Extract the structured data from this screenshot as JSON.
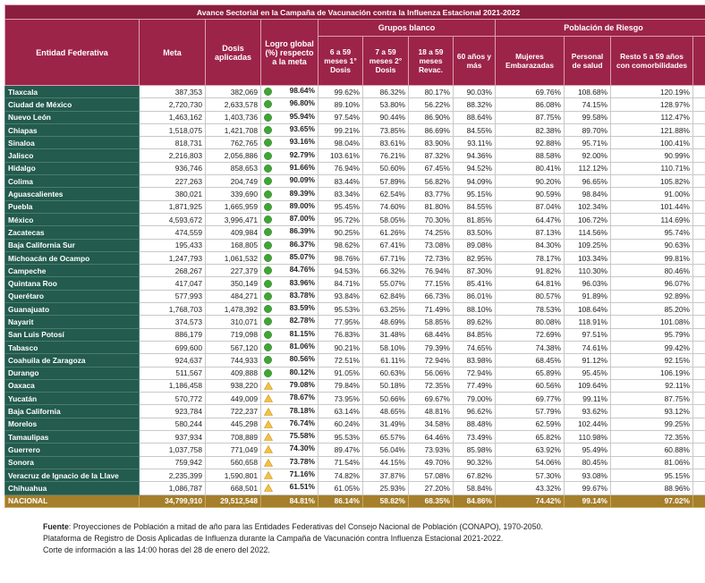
{
  "table": {
    "title": "Avance Sectorial en la Campaña de Vacunación contra la Influenza Estacional 2021-2022",
    "groups": [
      "Grupos blanco",
      "Población de Riesgo"
    ],
    "columns": [
      "Entidad Federativa",
      "Meta",
      "Dosis aplicadas",
      "Logro global (%) respecto a la meta",
      "6 a 59 meses 1° Dosis",
      "7 a 59 meses 2° Dosis",
      "18 a 59 meses Revac.",
      "60 años y más",
      "Mujeres Embarazadas",
      "Personal de salud",
      "Resto 5 a 59 años con comorbilidades"
    ],
    "rows": [
      {
        "icon": "circle",
        "cells": [
          "Tlaxcala",
          "387,353",
          "382,069",
          "98.64%",
          "99.62%",
          "86.32%",
          "80.17%",
          "90.03%",
          "69.76%",
          "108.68%",
          "120.19%"
        ]
      },
      {
        "icon": "circle",
        "cells": [
          "Ciudad de México",
          "2,720,730",
          "2,633,578",
          "96.80%",
          "89.10%",
          "53.80%",
          "56.22%",
          "88.32%",
          "86.08%",
          "74.15%",
          "128.97%"
        ]
      },
      {
        "icon": "circle",
        "cells": [
          "Nuevo León",
          "1,463,162",
          "1,403,736",
          "95.94%",
          "97.54%",
          "90.44%",
          "86.90%",
          "88.64%",
          "87.75%",
          "99.58%",
          "112.47%"
        ]
      },
      {
        "icon": "circle",
        "cells": [
          "Chiapas",
          "1,518,075",
          "1,421,708",
          "93.65%",
          "99.21%",
          "73.85%",
          "86.69%",
          "84.55%",
          "82.38%",
          "89.70%",
          "121.88%"
        ]
      },
      {
        "icon": "circle",
        "cells": [
          "Sinaloa",
          "818,731",
          "762,765",
          "93.16%",
          "98.04%",
          "83.61%",
          "83.90%",
          "93.11%",
          "92.88%",
          "95.71%",
          "100.41%"
        ]
      },
      {
        "icon": "circle",
        "cells": [
          "Jalisco",
          "2,216,803",
          "2,056,886",
          "92.79%",
          "103.61%",
          "76.21%",
          "87.32%",
          "94.36%",
          "88.58%",
          "92.00%",
          "90.99%"
        ]
      },
      {
        "icon": "circle",
        "cells": [
          "Hidalgo",
          "936,746",
          "858,653",
          "91.66%",
          "76.94%",
          "50.60%",
          "67.45%",
          "94.52%",
          "80.41%",
          "112.12%",
          "110.71%"
        ]
      },
      {
        "icon": "circle",
        "cells": [
          "Colima",
          "227,263",
          "204,749",
          "90.09%",
          "83.44%",
          "57.89%",
          "56.82%",
          "94.09%",
          "90.20%",
          "96.65%",
          "105.82%"
        ]
      },
      {
        "icon": "circle",
        "cells": [
          "Aguascalientes",
          "380,021",
          "339,690",
          "89.39%",
          "83.34%",
          "62.54%",
          "83.77%",
          "95.15%",
          "90.59%",
          "98.84%",
          "91.00%"
        ]
      },
      {
        "icon": "circle",
        "cells": [
          "Puebla",
          "1,871,925",
          "1,665,959",
          "89.00%",
          "95.45%",
          "74.60%",
          "81.80%",
          "84.55%",
          "87.04%",
          "102.34%",
          "101.44%"
        ]
      },
      {
        "icon": "circle",
        "cells": [
          "México",
          "4,593,672",
          "3,996,471",
          "87.00%",
          "95.72%",
          "58.05%",
          "70.30%",
          "81.85%",
          "64.47%",
          "106.72%",
          "114.69%"
        ]
      },
      {
        "icon": "circle",
        "cells": [
          "Zacatecas",
          "474,559",
          "409,984",
          "86.39%",
          "90.25%",
          "61.26%",
          "74.25%",
          "83.50%",
          "87.13%",
          "114.56%",
          "95.74%"
        ]
      },
      {
        "icon": "circle",
        "cells": [
          "Baja California Sur",
          "195,433",
          "168,805",
          "86.37%",
          "98.62%",
          "67.41%",
          "73.08%",
          "89.08%",
          "84.30%",
          "109.25%",
          "90.63%"
        ]
      },
      {
        "icon": "circle",
        "cells": [
          "Michoacán de Ocampo",
          "1,247,793",
          "1,061,532",
          "85.07%",
          "98.76%",
          "67.71%",
          "72.73%",
          "82.95%",
          "78.17%",
          "103.34%",
          "99.81%"
        ]
      },
      {
        "icon": "circle",
        "cells": [
          "Campeche",
          "268,267",
          "227,379",
          "84.76%",
          "94.53%",
          "66.32%",
          "76.94%",
          "87.30%",
          "91.82%",
          "110.30%",
          "80.46%"
        ]
      },
      {
        "icon": "circle",
        "cells": [
          "Quintana Roo",
          "417,047",
          "350,149",
          "83.96%",
          "84.71%",
          "55.07%",
          "77.15%",
          "85.41%",
          "64.81%",
          "96.03%",
          "96.07%"
        ]
      },
      {
        "icon": "circle",
        "cells": [
          "Querétaro",
          "577,993",
          "484,271",
          "83.78%",
          "93.84%",
          "62.84%",
          "66.73%",
          "86.01%",
          "80.57%",
          "91.89%",
          "92.89%"
        ]
      },
      {
        "icon": "circle",
        "cells": [
          "Guanajuato",
          "1,768,703",
          "1,478,392",
          "83.59%",
          "95.53%",
          "63.25%",
          "71.49%",
          "88.10%",
          "78.53%",
          "108.64%",
          "85.20%"
        ]
      },
      {
        "icon": "circle",
        "cells": [
          "Nayarit",
          "374,573",
          "310,071",
          "82.78%",
          "77.95%",
          "48.69%",
          "58.85%",
          "89.62%",
          "80.08%",
          "118.91%",
          "101.08%"
        ]
      },
      {
        "icon": "circle",
        "cells": [
          "San Luis Potosí",
          "886,179",
          "719,098",
          "81.15%",
          "76.83%",
          "31.48%",
          "68.44%",
          "84.85%",
          "72.69%",
          "97.51%",
          "95.79%"
        ]
      },
      {
        "icon": "circle",
        "cells": [
          "Tabasco",
          "699,600",
          "567,120",
          "81.06%",
          "90.21%",
          "58.10%",
          "79.39%",
          "74.65%",
          "74.38%",
          "74.61%",
          "99.42%"
        ]
      },
      {
        "icon": "circle",
        "cells": [
          "Coahuila de Zaragoza",
          "924,637",
          "744,933",
          "80.56%",
          "72.51%",
          "61.11%",
          "72.94%",
          "83.98%",
          "68.45%",
          "91.12%",
          "92.15%"
        ]
      },
      {
        "icon": "circle",
        "cells": [
          "Durango",
          "511,567",
          "409,888",
          "80.12%",
          "91.05%",
          "60.63%",
          "56.06%",
          "72.94%",
          "65.89%",
          "95.45%",
          "106.19%"
        ]
      },
      {
        "icon": "triangle",
        "cells": [
          "Oaxaca",
          "1,186,458",
          "938,220",
          "79.08%",
          "79.84%",
          "50.18%",
          "72.35%",
          "77.49%",
          "60.56%",
          "109.64%",
          "92.11%"
        ]
      },
      {
        "icon": "triangle",
        "cells": [
          "Yucatán",
          "570,772",
          "449,009",
          "78.67%",
          "73.95%",
          "50.66%",
          "69.67%",
          "79.00%",
          "69.77%",
          "99.11%",
          "87.75%"
        ]
      },
      {
        "icon": "triangle",
        "cells": [
          "Baja California",
          "923,784",
          "722,237",
          "78.18%",
          "63.14%",
          "48.65%",
          "48.81%",
          "96.62%",
          "57.79%",
          "93.62%",
          "93.12%"
        ]
      },
      {
        "icon": "triangle",
        "cells": [
          "Morelos",
          "580,244",
          "445,298",
          "76.74%",
          "60.24%",
          "31.49%",
          "34.58%",
          "88.48%",
          "62.59%",
          "102.44%",
          "99.25%"
        ]
      },
      {
        "icon": "triangle",
        "cells": [
          "Tamaulipas",
          "937,934",
          "708,889",
          "75.58%",
          "95.53%",
          "65.57%",
          "64.46%",
          "73.49%",
          "65.82%",
          "110.98%",
          "72.35%"
        ]
      },
      {
        "icon": "triangle",
        "cells": [
          "Guerrero",
          "1,037,758",
          "771,049",
          "74.30%",
          "89.47%",
          "56.04%",
          "73.93%",
          "85.98%",
          "63.92%",
          "95.49%",
          "60.88%"
        ]
      },
      {
        "icon": "triangle",
        "cells": [
          "Sonora",
          "759,942",
          "560,658",
          "73.78%",
          "71.54%",
          "44.15%",
          "49.70%",
          "90.32%",
          "54.06%",
          "80.45%",
          "81.06%"
        ]
      },
      {
        "icon": "triangle",
        "cells": [
          "Veracruz de Ignacio de la Llave",
          "2,235,399",
          "1,590,801",
          "71.16%",
          "74.82%",
          "37.87%",
          "57.08%",
          "67.82%",
          "57.30%",
          "93.08%",
          "95.15%"
        ]
      },
      {
        "icon": "triangle",
        "cells": [
          "Chihuahua",
          "1,086,787",
          "668,501",
          "61.51%",
          "61.05%",
          "25.93%",
          "27.20%",
          "58.84%",
          "43.32%",
          "99.67%",
          "88.96%"
        ]
      }
    ],
    "total": [
      "NACIONAL",
      "34,799,910",
      "29,512,548",
      "84.81%",
      "86.14%",
      "58.82%",
      "68.35%",
      "84.86%",
      "74.42%",
      "99.14%",
      "97.02%"
    ]
  },
  "footer": {
    "source_label": "Fuente",
    "source_text": ": Proyecciones de Población a mitad de año para las Entidades Federativas del Consejo Nacional de Población (CONAPO), 1970-2050.",
    "line2": "Plataforma de Registro de Dosis Aplicadas de Influenza durante la Campaña de Vacunación contra Influenza Estacional 2021-2022.",
    "line3": "Corte de información a las 14:00 horas del 28 de enero del 2022."
  }
}
